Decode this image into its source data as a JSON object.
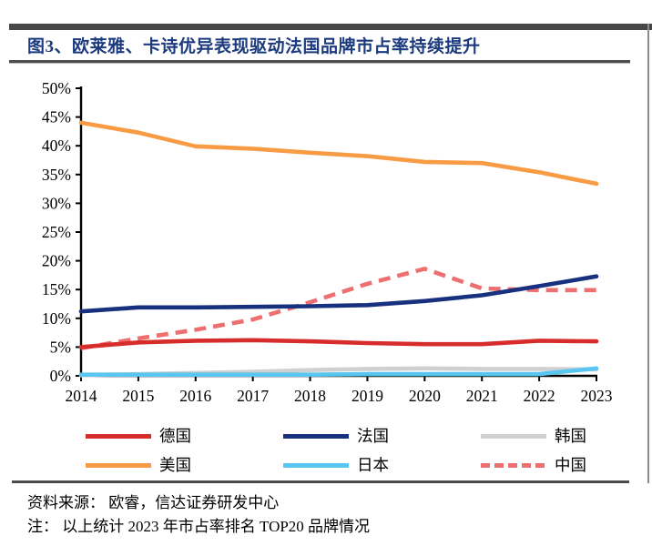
{
  "figure": {
    "title": "图3、欧莱雅、卡诗优异表现驱动法国品牌市占率持续提升",
    "source_text": "资料来源： 欧睿，信达证券研发中心",
    "note_text": "注： 以上统计 2023 年市占率排名 TOP20 品牌情况",
    "title_color": "#1c3a7e",
    "rule_color": "#474747"
  },
  "chart_data": {
    "type": "line",
    "title": "图3、欧莱雅、卡诗优异表现驱动法国品牌市占率持续提升",
    "xlabel": "",
    "ylabel": "",
    "x": [
      2014,
      2015,
      2016,
      2017,
      2018,
      2019,
      2020,
      2021,
      2022,
      2023
    ],
    "ylim": [
      0,
      50
    ],
    "ytick_step": 5,
    "ytick_suffix": "%",
    "grid": false,
    "legend_position": "bottom",
    "series": [
      {
        "key": "germany",
        "label": "德国",
        "color": "#d62c2c",
        "style": "solid",
        "values": [
          5.0,
          5.8,
          6.1,
          6.2,
          6.0,
          5.7,
          5.5,
          5.5,
          6.1,
          6.0
        ]
      },
      {
        "key": "france",
        "label": "法国",
        "color": "#17317f",
        "style": "solid",
        "values": [
          11.2,
          11.9,
          11.9,
          12.0,
          12.1,
          12.3,
          13.0,
          14.0,
          15.6,
          17.3
        ]
      },
      {
        "key": "korea",
        "label": "韩国",
        "color": "#d0d0d0",
        "style": "solid",
        "values": [
          0.1,
          0.3,
          0.5,
          0.7,
          1.0,
          1.2,
          1.3,
          1.2,
          1.2,
          1.1
        ]
      },
      {
        "key": "usa",
        "label": "美国",
        "color": "#f89b45",
        "style": "solid",
        "values": [
          44.0,
          42.3,
          39.9,
          39.5,
          38.8,
          38.2,
          37.2,
          37.0,
          35.4,
          33.4
        ]
      },
      {
        "key": "japan",
        "label": "日本",
        "color": "#58c6f0",
        "style": "solid",
        "values": [
          0.2,
          0.2,
          0.2,
          0.2,
          0.2,
          0.3,
          0.3,
          0.3,
          0.3,
          1.3
        ]
      },
      {
        "key": "china",
        "label": "中国",
        "color": "#ed6f6f",
        "style": "dashed",
        "values": [
          4.8,
          6.5,
          8.0,
          9.8,
          12.8,
          16.0,
          18.6,
          15.2,
          14.9,
          14.9
        ]
      }
    ],
    "draw_order": [
      "korea",
      "japan",
      "china",
      "germany",
      "usa",
      "france"
    ],
    "legend_order": [
      "germany",
      "france",
      "korea",
      "usa",
      "japan",
      "china"
    ]
  }
}
